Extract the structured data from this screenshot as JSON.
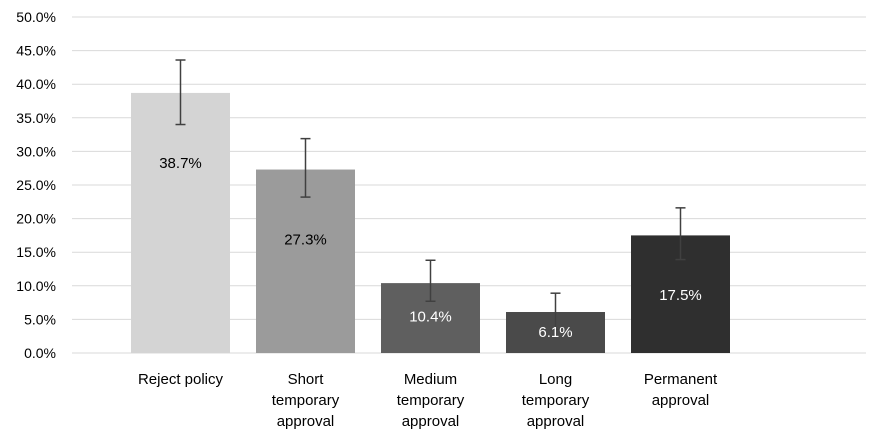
{
  "chart_data": {
    "type": "bar",
    "title": "",
    "xlabel": "",
    "ylabel": "",
    "ylim": [
      0,
      50
    ],
    "y_tick_step": 5,
    "y_tick_labels": [
      "0.0%",
      "5.0%",
      "10.0%",
      "15.0%",
      "20.0%",
      "25.0%",
      "30.0%",
      "35.0%",
      "40.0%",
      "45.0%",
      "50.0%"
    ],
    "grid": true,
    "legend": "none",
    "categories": [
      [
        "Reject policy"
      ],
      [
        "Short",
        "temporary",
        "approval"
      ],
      [
        "Medium",
        "temporary",
        "approval"
      ],
      [
        "Long",
        "temporary",
        "approval"
      ],
      [
        "Permanent",
        "approval"
      ]
    ],
    "values": [
      38.7,
      27.3,
      10.4,
      6.1,
      17.5
    ],
    "data_labels": [
      "38.7%",
      "27.3%",
      "10.4%",
      "6.1%",
      "17.5%"
    ],
    "error_low": [
      34.0,
      23.2,
      7.7,
      3.5,
      13.9
    ],
    "error_high": [
      43.6,
      31.9,
      13.8,
      8.9,
      21.6
    ],
    "bar_colors": [
      "#d4d4d4",
      "#9b9b9b",
      "#5f5f5f",
      "#4a4a4a",
      "#2f2f2f"
    ],
    "label_colors": [
      "#000000",
      "#000000",
      "#ffffff",
      "#ffffff",
      "#ffffff"
    ]
  }
}
